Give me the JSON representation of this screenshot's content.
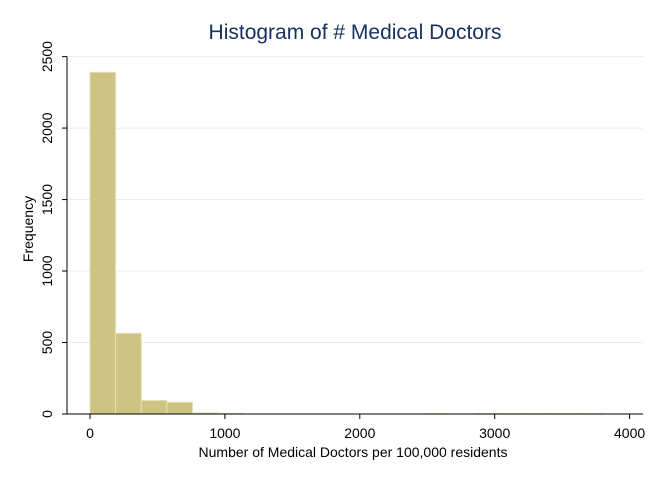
{
  "chart_data": {
    "type": "bar",
    "title": "Histogram of # Medical Doctors",
    "xlabel": "Number of Medical Doctors per 100,000 residents",
    "ylabel": "Frequency",
    "xlim": [
      0,
      4000
    ],
    "ylim": [
      0,
      2500
    ],
    "xticks": [
      0,
      1000,
      2000,
      3000,
      4000
    ],
    "yticks": [
      0,
      500,
      1000,
      1500,
      2000,
      2500
    ],
    "grid": true,
    "bin_width": 190,
    "bins": [
      {
        "x0": 0,
        "x1": 190,
        "count": 2390
      },
      {
        "x0": 190,
        "x1": 380,
        "count": 565
      },
      {
        "x0": 380,
        "x1": 570,
        "count": 95
      },
      {
        "x0": 570,
        "x1": 760,
        "count": 82
      },
      {
        "x0": 760,
        "x1": 950,
        "count": 8
      },
      {
        "x0": 950,
        "x1": 1140,
        "count": 4
      },
      {
        "x0": 2470,
        "x1": 2660,
        "count": 2
      },
      {
        "x0": 2850,
        "x1": 3040,
        "count": 2
      },
      {
        "x0": 3040,
        "x1": 3230,
        "count": 2
      },
      {
        "x0": 3230,
        "x1": 3420,
        "count": 2
      },
      {
        "x0": 3420,
        "x1": 3610,
        "count": 2
      },
      {
        "x0": 3610,
        "x1": 3800,
        "count": 2
      }
    ],
    "colors": {
      "bar_fill": "#cdc383",
      "bar_stroke": "#e8e2b8",
      "grid": "#ececec",
      "axis": "#000000",
      "title": "#1a3260"
    }
  }
}
